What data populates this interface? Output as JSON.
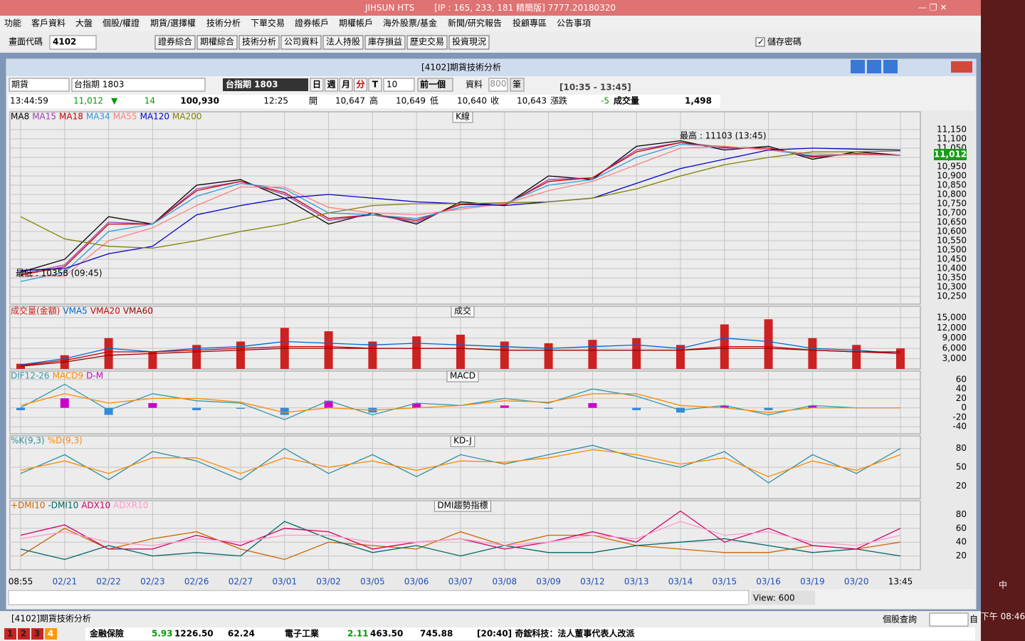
{
  "window": {
    "app": "JIHSUN HTS",
    "info": "[IP : 165, 233, 181 精簡版] 7777.20180320"
  },
  "menu": [
    "功能",
    "客戶資料",
    "大盤",
    "個股/權證",
    "期貨/選擇權",
    "技術分析",
    "下單交易",
    "證券帳戶",
    "期權帳戶",
    "海外股票/基金",
    "新聞/研究報告",
    "投顧專區",
    "公告事項"
  ],
  "toolbar": {
    "code_label": "畫面代碼",
    "code": "4102",
    "buttons": [
      "證券綜合",
      "期權綜合",
      "技術分析",
      "公司資料",
      "法人持股",
      "庫存損益",
      "歷史交易",
      "投資現況"
    ],
    "save_password": "儲存密碼"
  },
  "panel": {
    "title": "[4102]期貨技術分析"
  },
  "controls": {
    "product": "期貨",
    "contract": "台指期 1803",
    "contract_display": "台指期 1803",
    "periods": [
      "日",
      "週",
      "月",
      "分",
      "T"
    ],
    "interval": "10",
    "prev": "前一個",
    "data_label": "資料",
    "data_count": "800",
    "unit": "筆",
    "time_range": "[10:35 - 13:45]"
  },
  "quote": {
    "time": "13:44:59",
    "price": "11,012",
    "change": "14",
    "volume": "100,930",
    "bar_time": "12:25",
    "open_label": "開",
    "open": "10,647",
    "high_label": "高",
    "high": "10,649",
    "low_label": "低",
    "low": "10,640",
    "close_label": "收",
    "close": "10,643",
    "chg_label": "漲跌",
    "chg": "-5",
    "vol_label": "成交量",
    "vol": "1,498"
  },
  "chart_data": [
    {
      "type": "line",
      "title": "K線",
      "categories": [
        "08:55",
        "02/21",
        "02/22",
        "02/23",
        "02/26",
        "02/27",
        "03/01",
        "03/02",
        "03/05",
        "03/06",
        "03/07",
        "03/08",
        "03/09",
        "03/12",
        "03/13",
        "03/14",
        "03/15",
        "03/16",
        "03/19",
        "03/20",
        "13:45"
      ],
      "ylim": [
        10208,
        11246
      ],
      "yticks": [
        {
          "value": 10250,
          "label": "10,250"
        },
        {
          "value": 10300,
          "label": "10,300"
        },
        {
          "value": 10350,
          "label": "10,350"
        },
        {
          "value": 10400,
          "label": "10,400"
        },
        {
          "value": 10450,
          "label": "10,450"
        },
        {
          "value": 10500,
          "label": "10,500"
        },
        {
          "value": 10550,
          "label": "10,550"
        },
        {
          "value": 10600,
          "label": "10,600"
        },
        {
          "value": 10650,
          "label": "10,650"
        },
        {
          "value": 10700,
          "label": "10,700"
        },
        {
          "value": 10750,
          "label": "10,750"
        },
        {
          "value": 10800,
          "label": "10,800"
        },
        {
          "value": 10850,
          "label": "10,850"
        },
        {
          "value": 10900,
          "label": "10,900"
        },
        {
          "value": 10950,
          "label": "10,950"
        },
        {
          "value": 11000,
          "label": "11,000"
        },
        {
          "value": 11050,
          "label": "11,050"
        },
        {
          "value": 11100,
          "label": "11,100"
        },
        {
          "value": 11150,
          "label": "11,150"
        }
      ],
      "annotations": [
        "最高 : 11103 (13:45)",
        "最低 : 10358 (09:45)"
      ],
      "last_label": "11,012",
      "series": [
        {
          "name": "MA8",
          "color": "#000000",
          "values": [
            10380,
            10450,
            10680,
            10640,
            10850,
            10880,
            10780,
            10640,
            10700,
            10640,
            10760,
            10740,
            10900,
            10880,
            11060,
            11090,
            11040,
            11060,
            10990,
            11030,
            11012
          ]
        },
        {
          "name": "MA15",
          "color": "#a040b0",
          "values": [
            10370,
            10420,
            10650,
            10640,
            10830,
            10870,
            10800,
            10660,
            10690,
            10650,
            10750,
            10740,
            10880,
            10890,
            11040,
            11080,
            11050,
            11050,
            11000,
            11020,
            11010
          ]
        },
        {
          "name": "MA18",
          "color": "#cc0000",
          "values": [
            10365,
            10410,
            10640,
            10640,
            10820,
            10870,
            10810,
            10670,
            10690,
            10660,
            10745,
            10745,
            10870,
            10890,
            11030,
            11080,
            11055,
            11050,
            11005,
            11020,
            11010
          ]
        },
        {
          "name": "MA34",
          "color": "#3399dd",
          "values": [
            10330,
            10380,
            10600,
            10640,
            10790,
            10860,
            10830,
            10700,
            10690,
            10670,
            10730,
            10750,
            10850,
            10880,
            11000,
            11070,
            11060,
            11040,
            11010,
            11015,
            11010
          ]
        },
        {
          "name": "MA55",
          "color": "#ff8080",
          "values": [
            10360,
            10360,
            10550,
            10620,
            10740,
            10840,
            10840,
            10730,
            10700,
            10690,
            10720,
            10750,
            10820,
            10870,
            10960,
            11050,
            11060,
            11040,
            11020,
            11015,
            11012
          ]
        },
        {
          "name": "MA120",
          "color": "#0000cc",
          "values": [
            10390,
            10400,
            10480,
            10520,
            10690,
            10740,
            10780,
            10800,
            10780,
            10760,
            10750,
            10740,
            10760,
            10780,
            10860,
            10940,
            10990,
            11040,
            11050,
            11045,
            11040
          ]
        },
        {
          "name": "MA200",
          "color": "#808000",
          "values": [
            10680,
            10560,
            10520,
            10510,
            10550,
            10600,
            10640,
            10700,
            10740,
            10750,
            10750,
            10755,
            10760,
            10780,
            10830,
            10900,
            10960,
            11000,
            11030,
            11030,
            11035
          ]
        }
      ]
    },
    {
      "type": "bar",
      "title": "成交",
      "ylim": [
        0,
        18300
      ],
      "yticks": [
        {
          "value": 3000,
          "label": "3,000"
        },
        {
          "value": 6000,
          "label": "6,000"
        },
        {
          "value": 9000,
          "label": "9,000"
        },
        {
          "value": 12000,
          "label": "12,000"
        },
        {
          "value": 15000,
          "label": "15,000"
        }
      ],
      "series": [
        {
          "name": "成交量(金額)",
          "color": "#cc2222",
          "style": "bar",
          "values": [
            1500,
            4000,
            9000,
            5000,
            7000,
            8000,
            12000,
            11000,
            8000,
            9500,
            10000,
            8000,
            7500,
            8500,
            9000,
            7000,
            13000,
            14500,
            9000,
            7000,
            6000
          ]
        },
        {
          "name": "VMA5",
          "color": "#0066cc",
          "style": "line",
          "values": [
            1200,
            3000,
            6000,
            5000,
            6000,
            6500,
            8000,
            7500,
            7000,
            7500,
            7000,
            6500,
            6000,
            6500,
            7000,
            6000,
            9000,
            8000,
            6000,
            5500,
            4500
          ]
        },
        {
          "name": "VMA20",
          "color": "#cc0000",
          "style": "line",
          "values": [
            1000,
            2500,
            5000,
            5000,
            5500,
            6000,
            6500,
            6500,
            6000,
            6000,
            6000,
            5500,
            5500,
            5500,
            5500,
            5500,
            6500,
            6500,
            5500,
            5000,
            4500
          ]
        },
        {
          "name": "VMA60",
          "color": "#990000",
          "style": "line",
          "values": [
            800,
            2000,
            4000,
            4500,
            5000,
            5500,
            6000,
            6000,
            6000,
            6000,
            6000,
            5500,
            5500,
            5500,
            5500,
            5500,
            6000,
            6000,
            5500,
            5000,
            5000
          ]
        }
      ]
    },
    {
      "type": "bar",
      "title": "MACD",
      "ylim": [
        -55,
        78
      ],
      "yticks": [
        -40,
        -20,
        0,
        20,
        40,
        60
      ],
      "series": [
        {
          "name": "DIF12-26",
          "color": "#3399aa",
          "style": "line",
          "values": [
            0,
            50,
            -5,
            30,
            15,
            10,
            -25,
            15,
            -15,
            10,
            5,
            20,
            10,
            40,
            25,
            -5,
            5,
            -15,
            5,
            0,
            0
          ]
        },
        {
          "name": "MACD9",
          "color": "#ff8800",
          "style": "line",
          "values": [
            5,
            30,
            10,
            20,
            20,
            12,
            -10,
            0,
            -5,
            0,
            5,
            15,
            12,
            30,
            30,
            5,
            0,
            -10,
            0,
            0,
            0
          ]
        },
        {
          "name": "D-M",
          "color": "#cc00cc",
          "neg_color": "#3388dd",
          "style": "bar",
          "values": [
            -5,
            20,
            -15,
            10,
            -5,
            -2,
            -15,
            15,
            -10,
            10,
            0,
            5,
            -2,
            10,
            -5,
            -10,
            5,
            -5,
            5,
            0,
            0
          ]
        }
      ]
    },
    {
      "type": "line",
      "title": "KD-J",
      "ylim": [
        0,
        100
      ],
      "yticks": [
        20,
        50,
        80
      ],
      "series": [
        {
          "name": "%K(9,3)",
          "color": "#2f8fa0",
          "values": [
            40,
            70,
            30,
            75,
            60,
            30,
            80,
            40,
            70,
            35,
            70,
            55,
            70,
            85,
            65,
            50,
            75,
            25,
            70,
            40,
            80
          ]
        },
        {
          "name": "%D(9,3)",
          "color": "#ff8800",
          "values": [
            45,
            60,
            40,
            65,
            65,
            40,
            65,
            50,
            60,
            45,
            60,
            58,
            65,
            78,
            70,
            55,
            65,
            35,
            60,
            45,
            70
          ]
        }
      ]
    },
    {
      "type": "line",
      "title": "DMI趨勢指標",
      "ylim": [
        0,
        100
      ],
      "yticks": [
        20,
        40,
        60,
        80
      ],
      "series": [
        {
          "name": "+DMI10",
          "color": "#cc6600",
          "values": [
            20,
            60,
            30,
            45,
            55,
            30,
            15,
            40,
            35,
            30,
            55,
            35,
            50,
            50,
            35,
            30,
            25,
            25,
            35,
            30,
            40
          ]
        },
        {
          "name": "-DMI10",
          "color": "#006666",
          "values": [
            30,
            15,
            35,
            20,
            25,
            20,
            70,
            45,
            25,
            35,
            20,
            35,
            25,
            25,
            35,
            40,
            45,
            35,
            25,
            30,
            20
          ]
        },
        {
          "name": "ADX10",
          "color": "#cc0066",
          "values": [
            50,
            65,
            30,
            30,
            50,
            35,
            60,
            55,
            30,
            40,
            45,
            30,
            40,
            55,
            40,
            85,
            40,
            60,
            35,
            30,
            60
          ]
        },
        {
          "name": "ADXR10",
          "color": "#ff99cc",
          "values": [
            45,
            55,
            40,
            35,
            45,
            40,
            50,
            50,
            40,
            40,
            45,
            35,
            40,
            50,
            45,
            70,
            50,
            55,
            40,
            35,
            50
          ]
        }
      ]
    }
  ],
  "view": "View: 600",
  "status": {
    "tab": "[4102]期貨技術分析",
    "query": "個股查詢",
    "self": "自",
    "pages": [
      "1",
      "2",
      "3",
      "4"
    ],
    "sector1": "金融保險",
    "s1_chg": "5.93",
    "s1_idx": "1226.50",
    "s1_val": "62.24",
    "sector2": "電子工業",
    "s2_chg": "2.11",
    "s2_idx": "463.50",
    "s2_val": "745.88",
    "news": "[20:40] 奇鋐科技：法人董事代表人改派"
  },
  "taskbar": {
    "ime": "中",
    "clock": "下午 08:46"
  }
}
